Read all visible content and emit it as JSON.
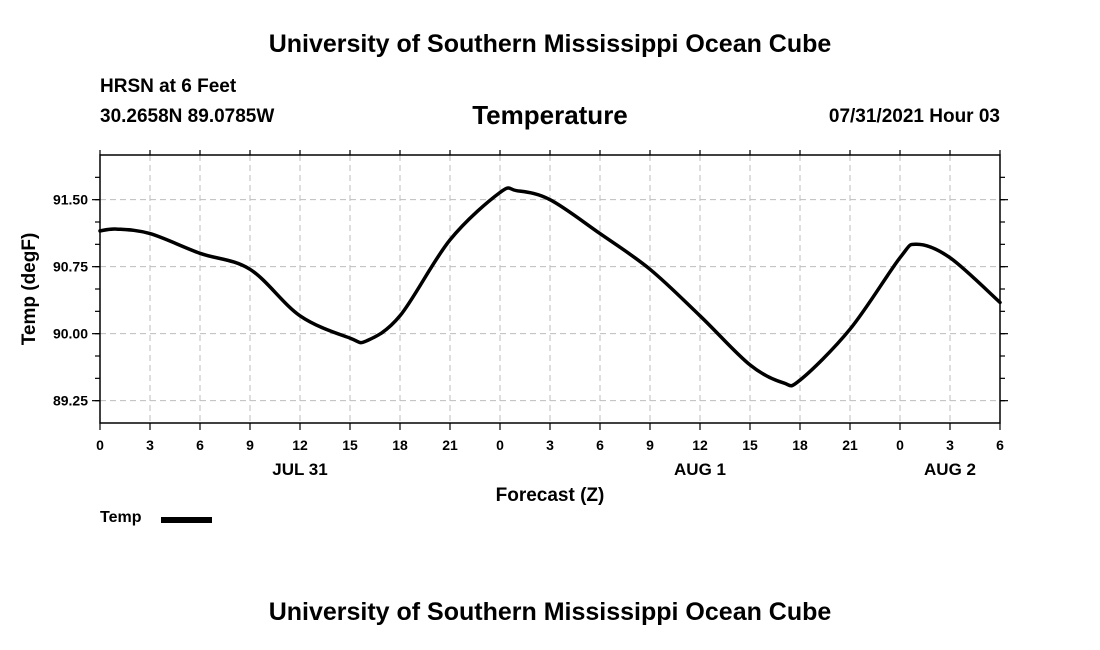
{
  "header": {
    "title_top": "University of Southern Mississippi Ocean Cube",
    "station": "HRSN at 6 Feet",
    "coordinates": "30.2658N  89.0785W",
    "variable": "Temperature",
    "datetime": "07/31/2021 Hour 03"
  },
  "footer": {
    "title_bottom": "University of Southern Mississippi Ocean Cube"
  },
  "legend": {
    "label": "Temp",
    "color": "#000000"
  },
  "chart_data": {
    "type": "line",
    "title": "Temperature",
    "xlabel": "Forecast (Z)",
    "ylabel": "Temp (degF)",
    "xlim": [
      0,
      54
    ],
    "ylim": [
      89.0,
      92.0
    ],
    "grid": true,
    "x_ticks": [
      0,
      3,
      6,
      9,
      12,
      15,
      18,
      21,
      24,
      27,
      30,
      33,
      36,
      39,
      42,
      45,
      48,
      51,
      54
    ],
    "x_tick_labels": [
      "0",
      "3",
      "6",
      "9",
      "12",
      "15",
      "18",
      "21",
      "0",
      "3",
      "6",
      "9",
      "12",
      "15",
      "18",
      "21",
      "0",
      "3",
      "6"
    ],
    "y_ticks": [
      89.25,
      90.0,
      90.75,
      91.5
    ],
    "y_tick_labels": [
      "89.25",
      "90.00",
      "90.75",
      "91.50"
    ],
    "date_labels": [
      {
        "x": 12,
        "label": "JUL 31"
      },
      {
        "x": 36,
        "label": "AUG 1"
      },
      {
        "x": 51,
        "label": "AUG 2"
      }
    ],
    "series": [
      {
        "name": "Temp",
        "x": [
          0,
          1,
          3,
          6,
          9,
          12,
          15,
          16,
          18,
          21,
          24,
          25,
          27,
          30,
          33,
          36,
          39,
          41,
          42,
          45,
          48,
          49,
          51,
          54
        ],
        "values": [
          91.15,
          91.17,
          91.12,
          90.9,
          90.72,
          90.2,
          89.95,
          89.92,
          90.2,
          91.05,
          91.58,
          91.6,
          91.5,
          91.12,
          90.72,
          90.2,
          89.65,
          89.45,
          89.48,
          90.05,
          90.85,
          91.0,
          90.85,
          90.35
        ]
      }
    ]
  }
}
